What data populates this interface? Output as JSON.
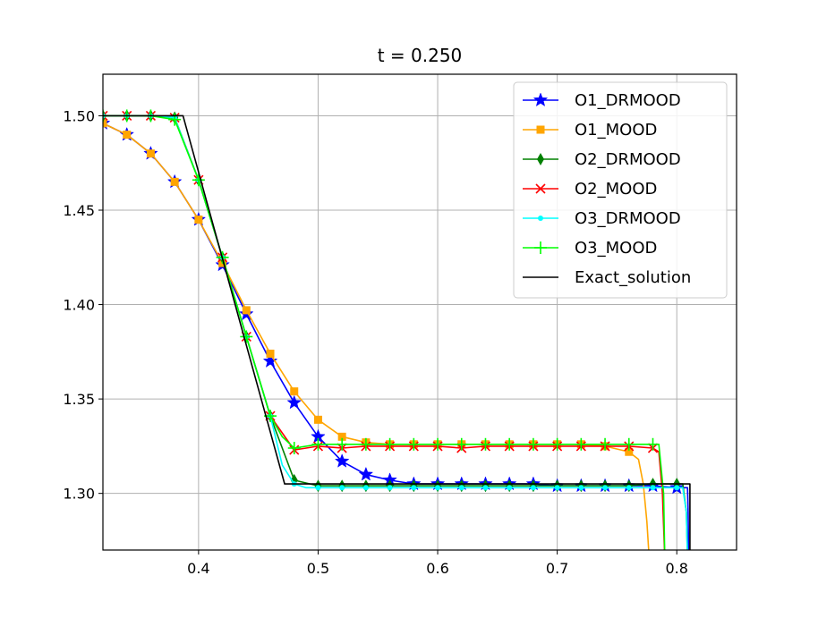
{
  "chart_data": {
    "type": "line",
    "title": "t = 0.250",
    "xlabel": "",
    "ylabel": "",
    "xlim": [
      0.32,
      0.85
    ],
    "ylim": [
      1.27,
      1.522
    ],
    "xticks": [
      0.4,
      0.5,
      0.6,
      0.7,
      0.8
    ],
    "xtick_labels": [
      "0.4",
      "0.5",
      "0.6",
      "0.7",
      "0.8"
    ],
    "yticks": [
      1.3,
      1.35,
      1.4,
      1.45,
      1.5
    ],
    "ytick_labels": [
      "1.30",
      "1.35",
      "1.40",
      "1.45",
      "1.50"
    ],
    "grid": true,
    "legend_position": "top-right",
    "series": [
      {
        "name": "O1_DRMOOD",
        "color": "#0000ff",
        "marker": "star",
        "x": [
          0.32,
          0.34,
          0.36,
          0.38,
          0.4,
          0.42,
          0.44,
          0.46,
          0.48,
          0.5,
          0.52,
          0.54,
          0.56,
          0.58,
          0.6,
          0.62,
          0.64,
          0.66,
          0.68,
          0.7,
          0.72,
          0.74,
          0.76,
          0.78,
          0.8,
          0.809,
          0.8095,
          0.81
        ],
        "y": [
          1.496,
          1.49,
          1.48,
          1.465,
          1.445,
          1.421,
          1.395,
          1.37,
          1.348,
          1.33,
          1.317,
          1.31,
          1.307,
          1.305,
          1.305,
          1.305,
          1.305,
          1.305,
          1.305,
          1.304,
          1.304,
          1.304,
          1.304,
          1.304,
          1.303,
          1.303,
          1.29,
          1.265
        ],
        "marker_x": [
          0.32,
          0.34,
          0.36,
          0.38,
          0.4,
          0.42,
          0.44,
          0.46,
          0.48,
          0.5,
          0.52,
          0.54,
          0.56,
          0.58,
          0.6,
          0.62,
          0.64,
          0.66,
          0.68,
          0.7,
          0.72,
          0.74,
          0.76,
          0.78,
          0.8
        ]
      },
      {
        "name": "O1_MOOD",
        "color": "#ffa500",
        "marker": "square",
        "x": [
          0.32,
          0.34,
          0.36,
          0.38,
          0.4,
          0.42,
          0.44,
          0.46,
          0.48,
          0.5,
          0.52,
          0.54,
          0.56,
          0.58,
          0.6,
          0.62,
          0.64,
          0.66,
          0.68,
          0.7,
          0.72,
          0.74,
          0.76,
          0.768,
          0.772,
          0.775,
          0.777
        ],
        "y": [
          1.496,
          1.49,
          1.48,
          1.465,
          1.445,
          1.422,
          1.397,
          1.374,
          1.354,
          1.339,
          1.33,
          1.327,
          1.326,
          1.326,
          1.326,
          1.326,
          1.326,
          1.326,
          1.326,
          1.326,
          1.326,
          1.325,
          1.322,
          1.318,
          1.305,
          1.285,
          1.265
        ],
        "marker_x": [
          0.32,
          0.34,
          0.36,
          0.38,
          0.4,
          0.42,
          0.44,
          0.46,
          0.48,
          0.5,
          0.52,
          0.54,
          0.56,
          0.58,
          0.6,
          0.62,
          0.64,
          0.66,
          0.68,
          0.7,
          0.72,
          0.74,
          0.76
        ]
      },
      {
        "name": "O2_DRMOOD",
        "color": "#008000",
        "marker": "thin_diamond",
        "x": [
          0.32,
          0.34,
          0.36,
          0.38,
          0.4,
          0.42,
          0.44,
          0.46,
          0.48,
          0.5,
          0.52,
          0.54,
          0.56,
          0.58,
          0.6,
          0.62,
          0.64,
          0.66,
          0.68,
          0.7,
          0.72,
          0.74,
          0.76,
          0.78,
          0.8,
          0.805,
          0.808,
          0.809
        ],
        "y": [
          1.5,
          1.5,
          1.5,
          1.499,
          1.466,
          1.425,
          1.383,
          1.341,
          1.307,
          1.304,
          1.304,
          1.304,
          1.304,
          1.304,
          1.304,
          1.304,
          1.304,
          1.304,
          1.304,
          1.304,
          1.304,
          1.304,
          1.304,
          1.305,
          1.305,
          1.305,
          1.29,
          1.265
        ],
        "marker_x": [
          0.32,
          0.34,
          0.36,
          0.38,
          0.4,
          0.42,
          0.44,
          0.46,
          0.48,
          0.5,
          0.52,
          0.54,
          0.56,
          0.58,
          0.6,
          0.62,
          0.64,
          0.66,
          0.68,
          0.7,
          0.72,
          0.74,
          0.76,
          0.78,
          0.8
        ]
      },
      {
        "name": "O2_MOOD",
        "color": "#ff0000",
        "marker": "x",
        "x": [
          0.32,
          0.34,
          0.36,
          0.38,
          0.4,
          0.42,
          0.44,
          0.46,
          0.48,
          0.5,
          0.52,
          0.54,
          0.56,
          0.58,
          0.6,
          0.62,
          0.64,
          0.66,
          0.68,
          0.7,
          0.72,
          0.74,
          0.76,
          0.78,
          0.785,
          0.788,
          0.79
        ],
        "y": [
          1.5,
          1.5,
          1.5,
          1.499,
          1.466,
          1.425,
          1.383,
          1.341,
          1.323,
          1.325,
          1.324,
          1.325,
          1.325,
          1.325,
          1.325,
          1.324,
          1.325,
          1.325,
          1.325,
          1.325,
          1.325,
          1.325,
          1.325,
          1.324,
          1.322,
          1.3,
          1.265
        ],
        "marker_x": [
          0.32,
          0.34,
          0.36,
          0.38,
          0.4,
          0.42,
          0.44,
          0.46,
          0.48,
          0.5,
          0.52,
          0.54,
          0.56,
          0.58,
          0.6,
          0.62,
          0.64,
          0.66,
          0.68,
          0.7,
          0.72,
          0.74,
          0.76,
          0.78
        ]
      },
      {
        "name": "O3_DRMOOD",
        "color": "#00ffff",
        "marker": "point",
        "x": [
          0.32,
          0.34,
          0.36,
          0.38,
          0.4,
          0.42,
          0.44,
          0.46,
          0.47,
          0.48,
          0.49,
          0.5,
          0.52,
          0.54,
          0.56,
          0.58,
          0.6,
          0.62,
          0.64,
          0.66,
          0.68,
          0.7,
          0.72,
          0.74,
          0.76,
          0.78,
          0.8,
          0.805,
          0.808,
          0.809
        ],
        "y": [
          1.5,
          1.5,
          1.5,
          1.499,
          1.466,
          1.425,
          1.383,
          1.341,
          1.315,
          1.305,
          1.303,
          1.303,
          1.303,
          1.303,
          1.303,
          1.303,
          1.303,
          1.303,
          1.303,
          1.303,
          1.303,
          1.303,
          1.303,
          1.303,
          1.303,
          1.303,
          1.303,
          1.303,
          1.29,
          1.265
        ],
        "marker_x": [
          0.32,
          0.34,
          0.36,
          0.38,
          0.4,
          0.42,
          0.44,
          0.46,
          0.48,
          0.5,
          0.52,
          0.54,
          0.56,
          0.58,
          0.6,
          0.62,
          0.64,
          0.66,
          0.68,
          0.7,
          0.72,
          0.74,
          0.76,
          0.78,
          0.8
        ]
      },
      {
        "name": "O3_MOOD",
        "color": "#00ff00",
        "marker": "plus",
        "x": [
          0.32,
          0.34,
          0.36,
          0.38,
          0.4,
          0.42,
          0.44,
          0.46,
          0.47,
          0.48,
          0.5,
          0.52,
          0.54,
          0.56,
          0.58,
          0.6,
          0.62,
          0.64,
          0.66,
          0.68,
          0.7,
          0.72,
          0.74,
          0.76,
          0.78,
          0.785,
          0.789,
          0.79
        ],
        "y": [
          1.5,
          1.5,
          1.5,
          1.498,
          1.466,
          1.425,
          1.383,
          1.341,
          1.33,
          1.324,
          1.326,
          1.326,
          1.326,
          1.326,
          1.326,
          1.326,
          1.326,
          1.326,
          1.326,
          1.326,
          1.326,
          1.326,
          1.326,
          1.326,
          1.326,
          1.326,
          1.3,
          1.265
        ],
        "marker_x": [
          0.32,
          0.34,
          0.36,
          0.38,
          0.4,
          0.42,
          0.44,
          0.46,
          0.48,
          0.5,
          0.52,
          0.54,
          0.56,
          0.58,
          0.6,
          0.62,
          0.64,
          0.66,
          0.68,
          0.7,
          0.72,
          0.74,
          0.76,
          0.78
        ]
      },
      {
        "name": "Exact_solution",
        "color": "#000000",
        "marker": "none",
        "x": [
          0.32,
          0.387,
          0.472,
          0.811,
          0.811
        ],
        "y": [
          1.5,
          1.5,
          1.305,
          1.305,
          1.265
        ],
        "marker_x": []
      }
    ]
  }
}
